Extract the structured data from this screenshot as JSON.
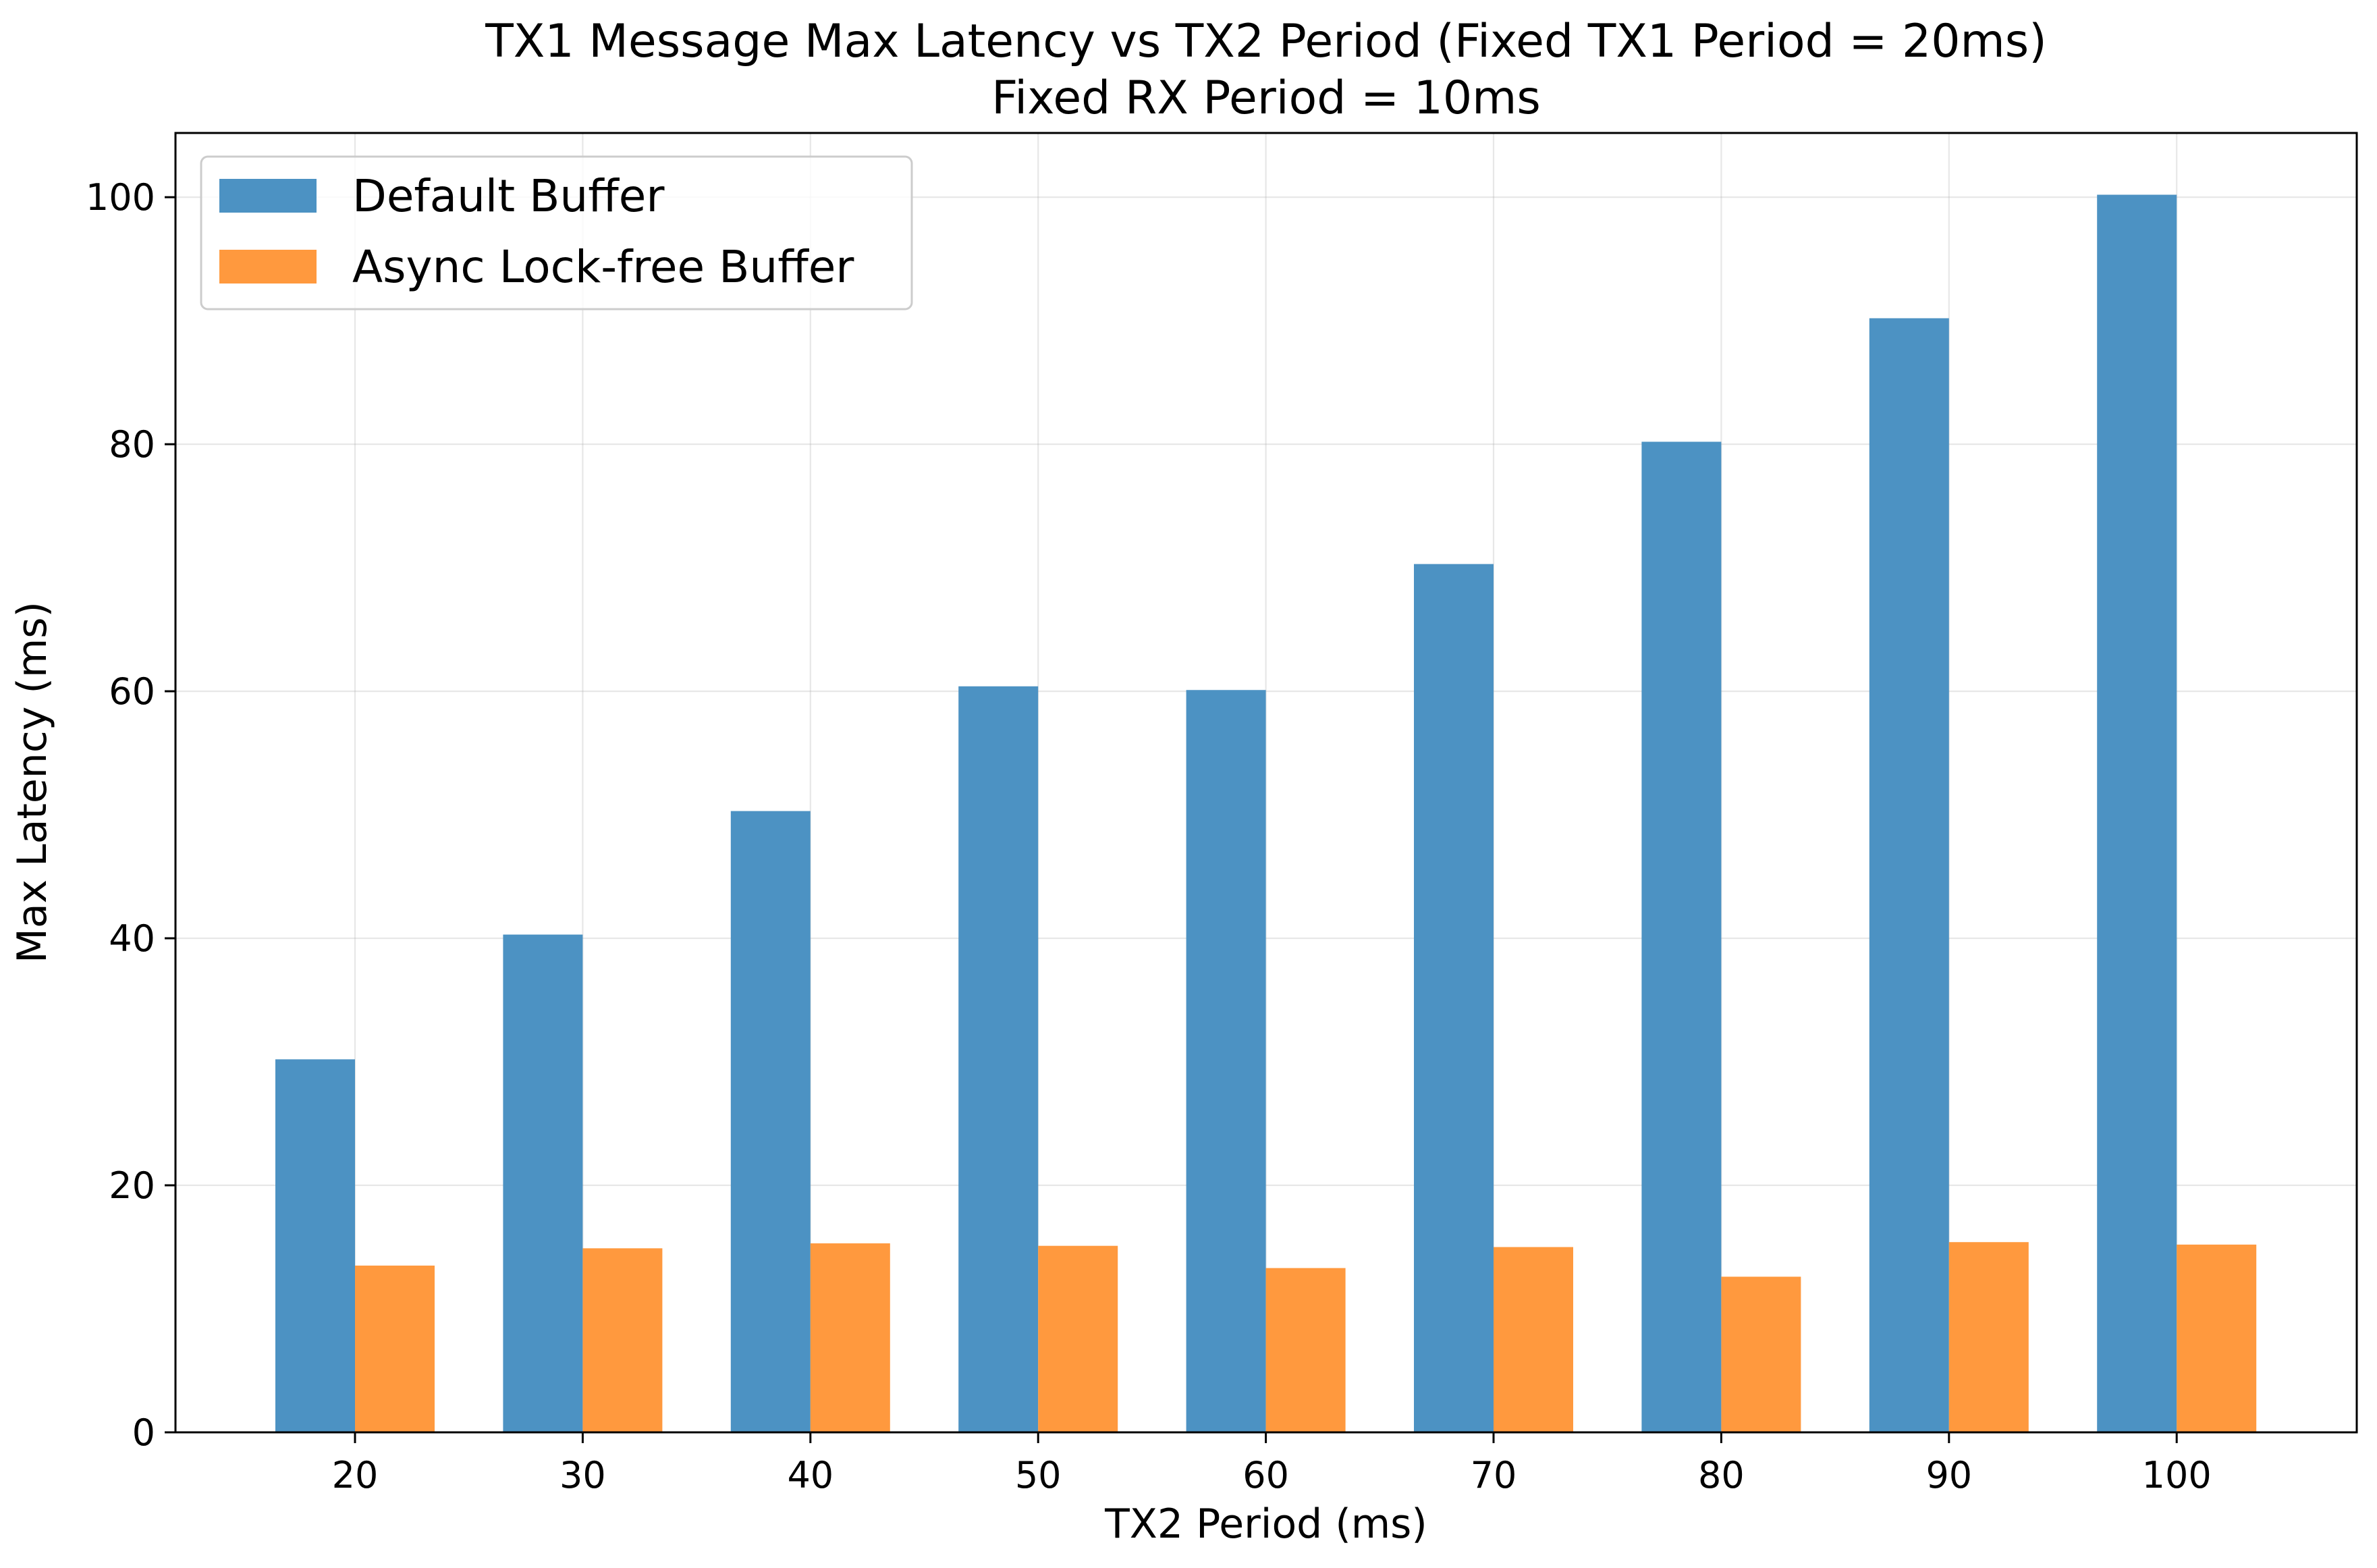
{
  "chart_data": {
    "type": "bar",
    "title": "TX1 Message Max Latency vs TX2 Period (Fixed TX1 Period = 20ms)",
    "subtitle": "Fixed RX Period = 10ms",
    "xlabel": "TX2 Period (ms)",
    "ylabel": "Max Latency (ms)",
    "categories": [
      "20",
      "30",
      "40",
      "50",
      "60",
      "70",
      "80",
      "90",
      "100"
    ],
    "series": [
      {
        "name": "Default Buffer",
        "color": "#4c92c3",
        "values": [
          30.2,
          40.3,
          50.3,
          60.4,
          60.1,
          70.3,
          80.2,
          90.2,
          100.2
        ]
      },
      {
        "name": "Async Lock-free Buffer",
        "color": "#ff993e",
        "values": [
          13.5,
          14.9,
          15.3,
          15.1,
          13.3,
          15.0,
          12.6,
          15.4,
          15.2
        ]
      }
    ],
    "yticks": [
      "0",
      "20",
      "40",
      "60",
      "80",
      "100"
    ],
    "ylim": [
      0,
      105.2
    ],
    "grid": true,
    "legend_position": "upper left"
  }
}
